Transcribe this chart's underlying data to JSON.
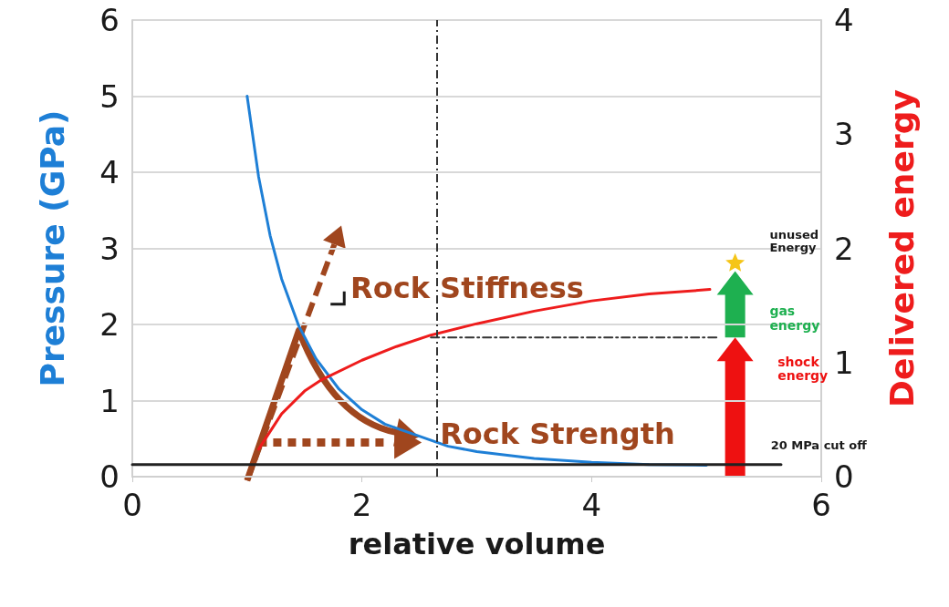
{
  "chart_data": {
    "type": "line",
    "xlabel": "relative volume",
    "ylabel": "Pressure (GPa)",
    "y2label": "Delivered energy",
    "xlim": [
      0,
      6
    ],
    "xticks": [
      0,
      2,
      4,
      6
    ],
    "ylim": [
      0,
      6
    ],
    "yticks": [
      0,
      1,
      2,
      3,
      4,
      5,
      6
    ],
    "y2lim": [
      0,
      4
    ],
    "y2ticks": [
      0,
      1,
      2,
      3,
      4
    ],
    "grid": "y",
    "marker": "none",
    "line_style": "solid",
    "series": [
      {
        "color": "#1e7fd6",
        "x": [
          1,
          1.1,
          1.2,
          1.3,
          1.45,
          1.6,
          1.8,
          2,
          2.2,
          2.75,
          3,
          3.5,
          4,
          4.5,
          5
        ],
        "values": [
          5,
          3.94,
          3.17,
          2.6,
          1.98,
          1.55,
          1.15,
          0.88,
          0.69,
          0.4,
          0.33,
          0.24,
          0.19,
          0.16,
          0.15
        ]
      },
      {
        "color": "#ee1c1c",
        "axis": "y2",
        "x": [
          1.1,
          1.3,
          1.5,
          1.65,
          2,
          2.3,
          2.6,
          3,
          3.5,
          4,
          4.5,
          5.03
        ],
        "values": [
          0.24,
          0.55,
          0.75,
          0.85,
          1.02,
          1.14,
          1.24,
          1.34,
          1.45,
          1.54,
          1.6,
          1.64
        ]
      },
      {
        "color": "#222222",
        "x": [
          0,
          5.65
        ],
        "values": [
          0.16,
          0.16
        ]
      },
      {
        "color": "#333333",
        "axis": "y2",
        "line_style": "dashed",
        "x": [
          2.6,
          5.1
        ],
        "values": [
          1.22,
          1.22
        ]
      }
    ],
    "ref_lines": [
      {
        "axis": "x",
        "value": 2.65,
        "color": "#333333",
        "line_style": "dashed"
      }
    ],
    "annotations": [
      "Rock Stiffness",
      "Rock Strength",
      "unused Energy",
      "gas energy",
      "shock energy",
      "20 MPa cut off"
    ]
  }
}
